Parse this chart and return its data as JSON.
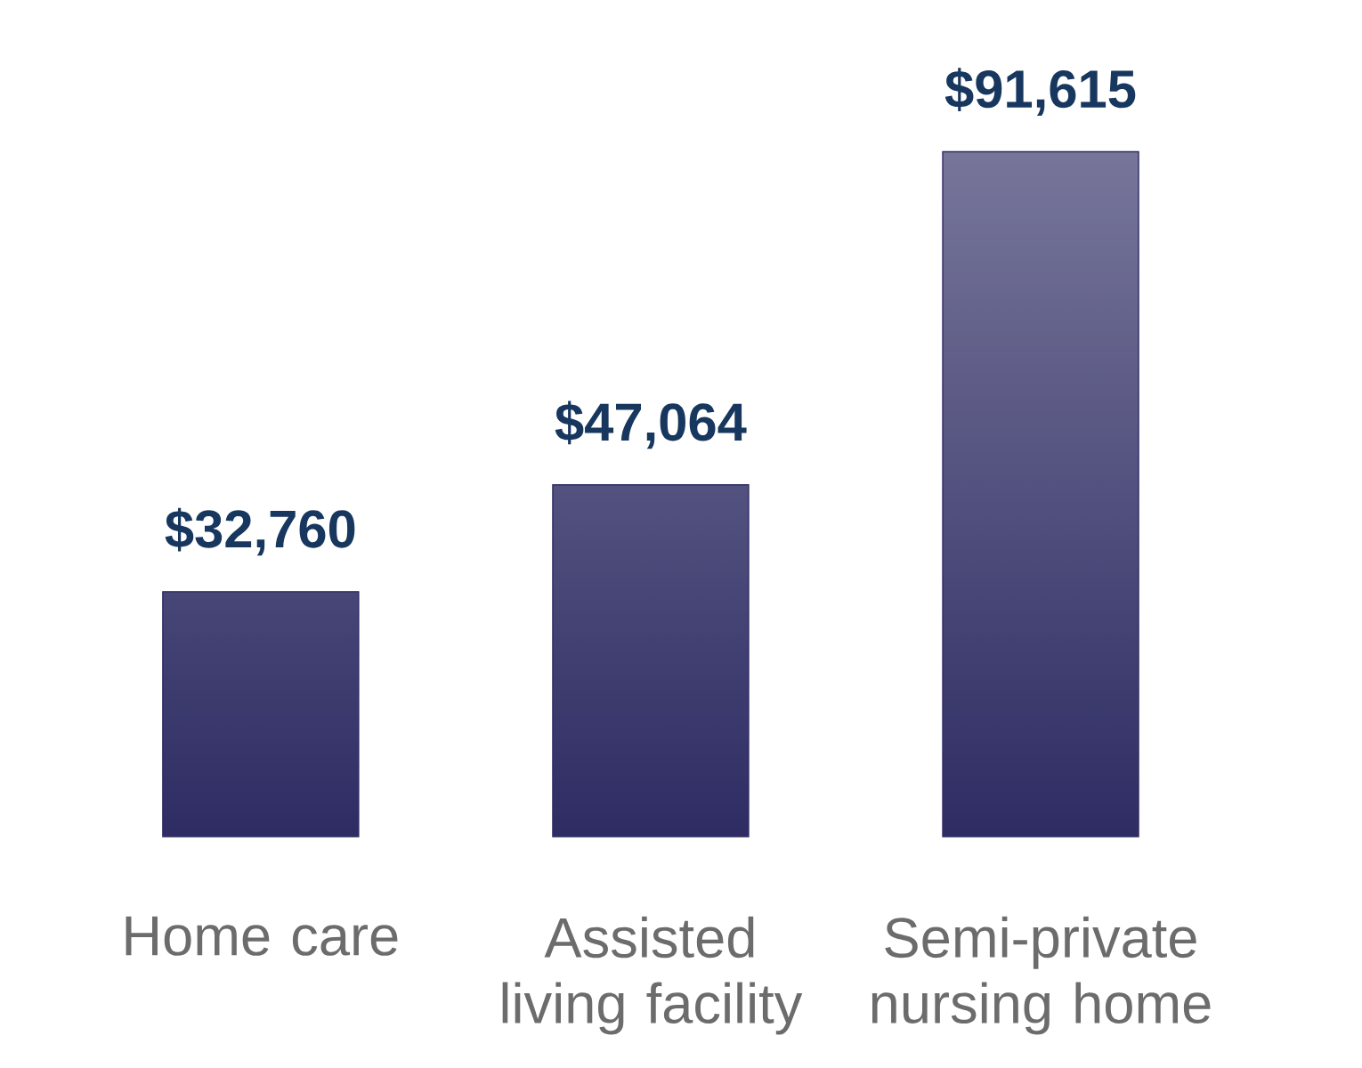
{
  "chart_data": {
    "type": "bar",
    "categories": [
      "Home care",
      "Assisted living facility",
      "Semi-private nursing home"
    ],
    "values": [
      32760,
      47064,
      91615
    ],
    "value_labels": [
      "$32,760",
      "$47,064",
      "$91,615"
    ],
    "color": "#2e2c63"
  }
}
